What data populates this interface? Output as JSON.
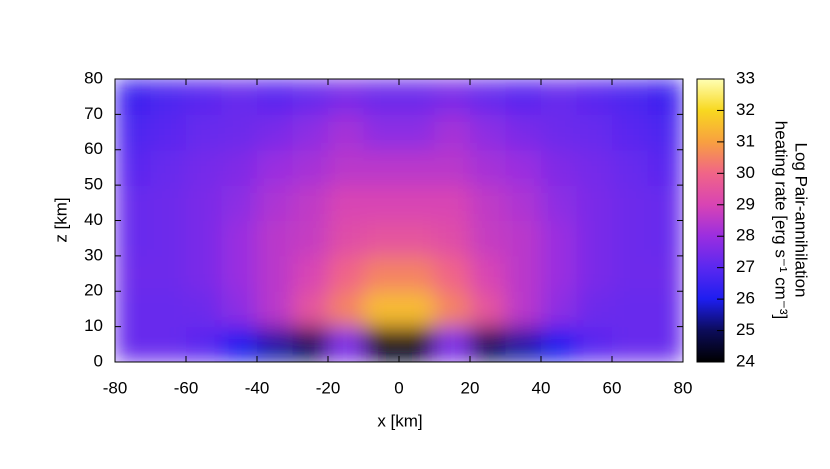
{
  "chart_data": {
    "type": "heatmap",
    "xlabel": "x [km]",
    "ylabel": "z [km]",
    "colorbar_label": [
      "Log Pair-annihilation",
      "heating rate [erg s⁻¹ cm⁻³]"
    ],
    "x": [
      -75,
      -65,
      -55,
      -45,
      -35,
      -25,
      -15,
      -5,
      5,
      15,
      25,
      35,
      45,
      55,
      65,
      75
    ],
    "z": [
      5,
      15,
      25,
      35,
      45,
      55,
      65,
      75
    ],
    "values": [
      [
        27.2,
        27.2,
        27,
        26,
        25.5,
        25,
        27.5,
        24.3,
        24.3,
        27.5,
        25,
        25.5,
        26,
        27,
        27.2,
        27.2
      ],
      [
        27.2,
        27.2,
        27.3,
        27.8,
        28.5,
        29.5,
        30.5,
        31.5,
        31.5,
        30.5,
        29.5,
        28.5,
        27.8,
        27.3,
        27.2,
        27.2
      ],
      [
        27.3,
        27.3,
        27.5,
        28,
        28.5,
        29,
        30,
        30.5,
        30.5,
        30,
        29,
        28.5,
        28,
        27.5,
        27.3,
        27.3
      ],
      [
        27.2,
        27.3,
        27.5,
        28,
        28.5,
        28.7,
        29.3,
        29.5,
        29.5,
        29.3,
        28.7,
        28.5,
        28,
        27.5,
        27.3,
        27.2
      ],
      [
        27.2,
        27.3,
        27.5,
        27.8,
        28.3,
        28.6,
        29,
        29,
        29,
        29,
        28.6,
        28.3,
        27.8,
        27.5,
        27.3,
        27.2
      ],
      [
        27,
        27.2,
        27.4,
        27.6,
        28,
        28.2,
        28.5,
        28.5,
        28.5,
        28.5,
        28.2,
        28,
        27.6,
        27.4,
        27.2,
        27
      ],
      [
        26.8,
        27,
        27.2,
        27.3,
        27.5,
        27.8,
        28.2,
        27.8,
        27.8,
        28.2,
        27.8,
        27.5,
        27.3,
        27.2,
        27,
        26.8
      ],
      [
        26.5,
        26.8,
        27,
        27.2,
        27,
        27.2,
        27.5,
        27.3,
        27.3,
        27.5,
        27.2,
        27,
        27.2,
        27,
        26.8,
        26.5
      ]
    ],
    "xlim": [
      -80,
      80
    ],
    "ylim": [
      0,
      80
    ],
    "xticks": [
      -80,
      -60,
      -40,
      -20,
      0,
      20,
      40,
      60,
      80
    ],
    "yticks": [
      0,
      10,
      20,
      30,
      40,
      50,
      60,
      70,
      80
    ],
    "clim": [
      24,
      33
    ],
    "cticks": [
      24,
      25,
      26,
      27,
      28,
      29,
      30,
      31,
      32,
      33
    ],
    "colormap": [
      "#000000",
      "#0c0c5a",
      "#1e1ef0",
      "#5a28f0",
      "#9a2ee0",
      "#d844b4",
      "#f06488",
      "#f8a040",
      "#f8d820",
      "#ffffb4"
    ]
  }
}
